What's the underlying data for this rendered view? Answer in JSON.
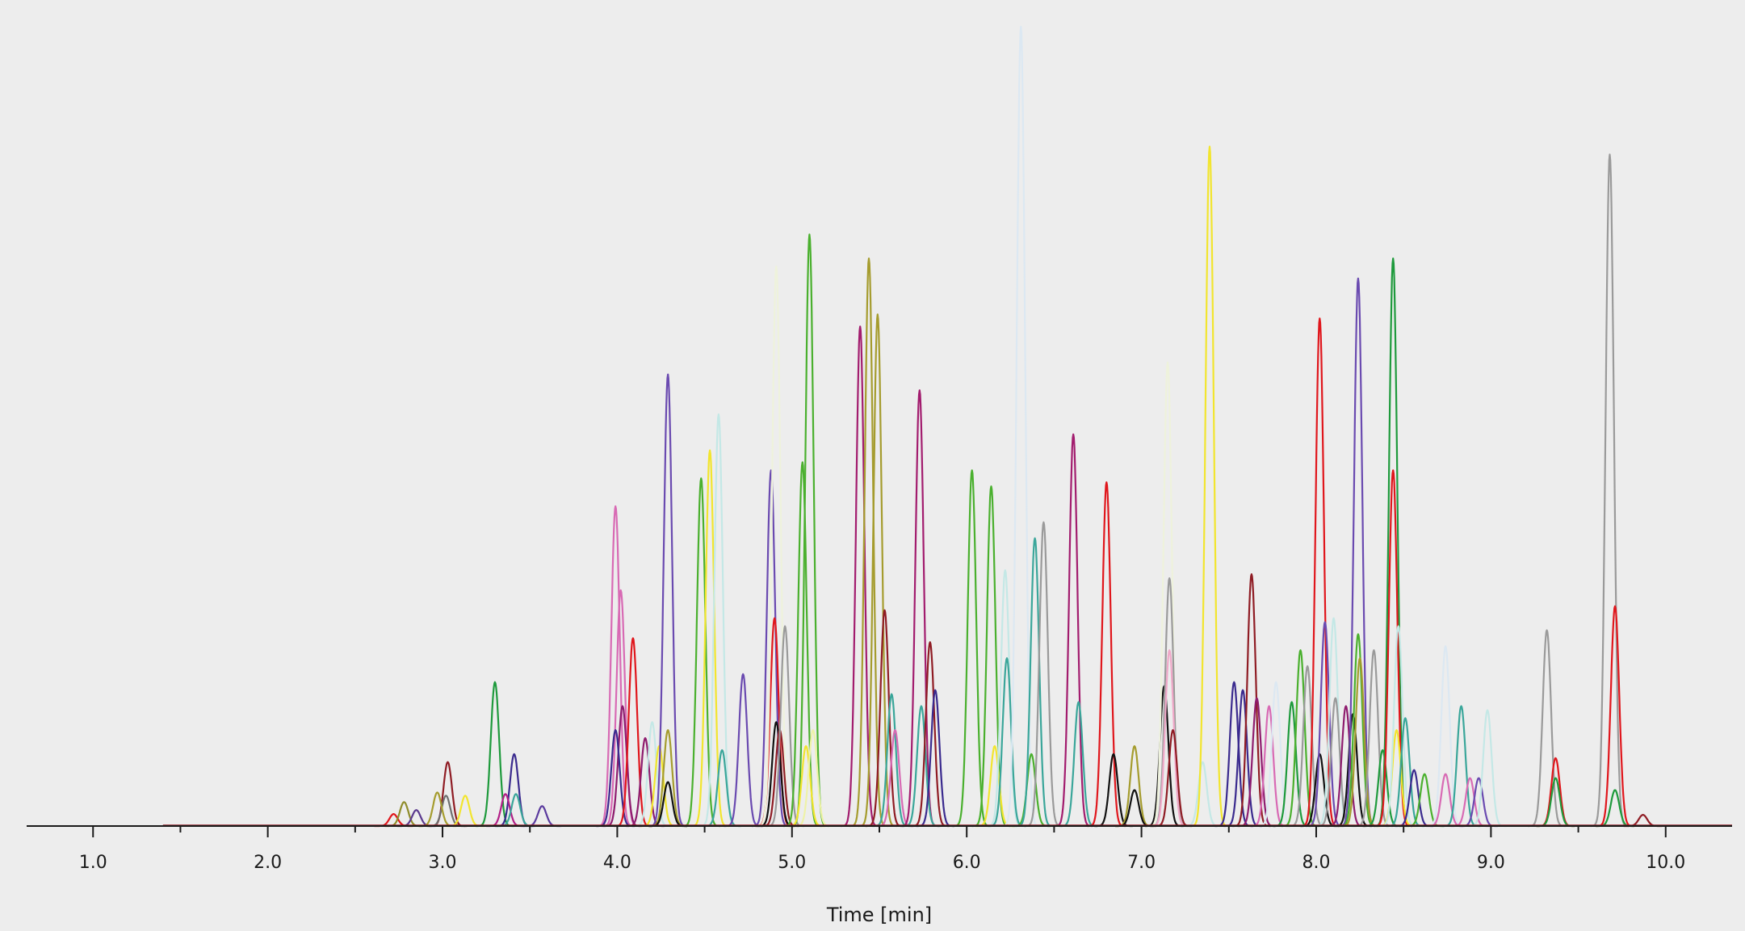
{
  "chart_data": {
    "type": "line",
    "title": "",
    "xlabel": "Time [min]",
    "ylabel": "",
    "xlim": [
      0.62,
      10.38
    ],
    "ylim": [
      0,
      100
    ],
    "grid": false,
    "legend": "none",
    "major_ticks": [
      1.0,
      2.0,
      3.0,
      4.0,
      5.0,
      6.0,
      7.0,
      8.0,
      9.0,
      10.0
    ],
    "tick_labels": [
      "1.0",
      "2.0",
      "3.0",
      "4.0",
      "5.0",
      "6.0",
      "7.0",
      "8.0",
      "9.0",
      "10.0"
    ],
    "minor_ticks": [
      1.5,
      2.5,
      3.5,
      4.5,
      5.5,
      6.5,
      7.5,
      8.5,
      9.5
    ],
    "baseline_start": 1.4,
    "peaks": [
      {
        "t": 2.72,
        "h": 1.5,
        "color": "#e0161c"
      },
      {
        "t": 2.78,
        "h": 3.0,
        "color": "#8f8c2a"
      },
      {
        "t": 2.85,
        "h": 2.0,
        "color": "#5b3a8e"
      },
      {
        "t": 3.03,
        "h": 8.0,
        "color": "#8f1c24"
      },
      {
        "t": 3.02,
        "h": 3.8,
        "color": "#6e6e6e"
      },
      {
        "t": 2.97,
        "h": 4.2,
        "color": "#a59c2e"
      },
      {
        "t": 3.13,
        "h": 3.8,
        "color": "#f2e52e"
      },
      {
        "t": 3.3,
        "h": 18.0,
        "color": "#1e9a3c"
      },
      {
        "t": 3.41,
        "h": 9.0,
        "color": "#3a2a8e"
      },
      {
        "t": 3.36,
        "h": 4.0,
        "color": "#b21e86"
      },
      {
        "t": 3.42,
        "h": 4.0,
        "color": "#3aa69a"
      },
      {
        "t": 3.57,
        "h": 2.5,
        "color": "#5a3a9e"
      },
      {
        "t": 3.99,
        "h": 40.0,
        "color": "#d86ab4"
      },
      {
        "t": 4.02,
        "h": 29.5,
        "color": "#d86ab4"
      },
      {
        "t": 4.03,
        "h": 15.0,
        "color": "#8e1c6e"
      },
      {
        "t": 3.99,
        "h": 12.0,
        "color": "#3a2a8e"
      },
      {
        "t": 4.09,
        "h": 23.5,
        "color": "#e0161c"
      },
      {
        "t": 4.16,
        "h": 11.0,
        "color": "#8e1c6e"
      },
      {
        "t": 4.2,
        "h": 13.0,
        "color": "#c4e8e6"
      },
      {
        "t": 4.24,
        "h": 10.0,
        "color": "#f2e52e"
      },
      {
        "t": 4.29,
        "h": 56.5,
        "color": "#6a4ab0"
      },
      {
        "t": 4.29,
        "h": 12.0,
        "color": "#a59c2e"
      },
      {
        "t": 4.29,
        "h": 5.5,
        "color": "#111111"
      },
      {
        "t": 4.48,
        "h": 43.5,
        "color": "#4ab02e"
      },
      {
        "t": 4.53,
        "h": 47.0,
        "color": "#f2e52e"
      },
      {
        "t": 4.58,
        "h": 51.5,
        "color": "#c4e8e6"
      },
      {
        "t": 4.6,
        "h": 9.5,
        "color": "#3aa69a"
      },
      {
        "t": 4.72,
        "h": 19.0,
        "color": "#6a4ab0"
      },
      {
        "t": 4.88,
        "h": 44.5,
        "color": "#6a4ab0"
      },
      {
        "t": 4.9,
        "h": 26.0,
        "color": "#e0161c"
      },
      {
        "t": 4.91,
        "h": 70.0,
        "color": "#eef2dc"
      },
      {
        "t": 4.91,
        "h": 13.0,
        "color": "#111111"
      },
      {
        "t": 4.93,
        "h": 12.0,
        "color": "#8f1c24"
      },
      {
        "t": 4.96,
        "h": 25.0,
        "color": "#9a9a9a"
      },
      {
        "t": 5.06,
        "h": 45.5,
        "color": "#4ab02e"
      },
      {
        "t": 5.1,
        "h": 74.0,
        "color": "#4ab02e"
      },
      {
        "t": 5.08,
        "h": 10.0,
        "color": "#f2e52e"
      },
      {
        "t": 5.12,
        "h": 12.0,
        "color": "#eef2a8"
      },
      {
        "t": 5.39,
        "h": 62.5,
        "color": "#a21c6e"
      },
      {
        "t": 5.44,
        "h": 71.0,
        "color": "#a59c2e"
      },
      {
        "t": 5.49,
        "h": 64.0,
        "color": "#a59c2e"
      },
      {
        "t": 5.53,
        "h": 27.0,
        "color": "#8f1c24"
      },
      {
        "t": 5.57,
        "h": 16.5,
        "color": "#3aa69a"
      },
      {
        "t": 5.59,
        "h": 12.0,
        "color": "#d86ab4"
      },
      {
        "t": 5.73,
        "h": 54.5,
        "color": "#a21c6e"
      },
      {
        "t": 5.74,
        "h": 15.0,
        "color": "#3aa69a"
      },
      {
        "t": 5.79,
        "h": 23.0,
        "color": "#8f1c24"
      },
      {
        "t": 5.82,
        "h": 17.0,
        "color": "#3a2a8e"
      },
      {
        "t": 6.03,
        "h": 44.5,
        "color": "#4ab02e"
      },
      {
        "t": 6.14,
        "h": 42.5,
        "color": "#4ab02e"
      },
      {
        "t": 6.16,
        "h": 10.0,
        "color": "#f2e52e"
      },
      {
        "t": 6.22,
        "h": 32.0,
        "color": "#c4e8e6"
      },
      {
        "t": 6.23,
        "h": 21.0,
        "color": "#3aa69a"
      },
      {
        "t": 6.31,
        "h": 100.0,
        "color": "#dce8f2"
      },
      {
        "t": 6.37,
        "h": 9.0,
        "color": "#4ab02e"
      },
      {
        "t": 6.39,
        "h": 36.0,
        "color": "#3aa69a"
      },
      {
        "t": 6.44,
        "h": 38.0,
        "color": "#9a9a9a"
      },
      {
        "t": 6.61,
        "h": 49.0,
        "color": "#a21c6e"
      },
      {
        "t": 6.64,
        "h": 15.5,
        "color": "#3aa69a"
      },
      {
        "t": 6.8,
        "h": 43.0,
        "color": "#e0161c"
      },
      {
        "t": 6.84,
        "h": 9.0,
        "color": "#111111"
      },
      {
        "t": 6.96,
        "h": 10.0,
        "color": "#a59c2e"
      },
      {
        "t": 6.96,
        "h": 4.5,
        "color": "#111111"
      },
      {
        "t": 7.13,
        "h": 17.5,
        "color": "#111111"
      },
      {
        "t": 7.15,
        "h": 58.0,
        "color": "#eef2dc"
      },
      {
        "t": 7.16,
        "h": 31.0,
        "color": "#9a9a9a"
      },
      {
        "t": 7.16,
        "h": 22.0,
        "color": "#f0a8c8"
      },
      {
        "t": 7.18,
        "h": 12.0,
        "color": "#8f1c24"
      },
      {
        "t": 7.35,
        "h": 8.0,
        "color": "#c4e8e6"
      },
      {
        "t": 7.39,
        "h": 85.0,
        "color": "#f2e52e"
      },
      {
        "t": 7.53,
        "h": 18.0,
        "color": "#3a2a8e"
      },
      {
        "t": 7.58,
        "h": 17.0,
        "color": "#3a2a8e"
      },
      {
        "t": 7.63,
        "h": 31.5,
        "color": "#8f1c24"
      },
      {
        "t": 7.66,
        "h": 16.0,
        "color": "#8e1c6e"
      },
      {
        "t": 7.73,
        "h": 15.0,
        "color": "#d86ab4"
      },
      {
        "t": 7.77,
        "h": 18.0,
        "color": "#dce8f2"
      },
      {
        "t": 7.86,
        "h": 15.5,
        "color": "#1e9a3c"
      },
      {
        "t": 7.91,
        "h": 22.0,
        "color": "#4ab02e"
      },
      {
        "t": 7.95,
        "h": 20.0,
        "color": "#9a9a9a"
      },
      {
        "t": 8.02,
        "h": 63.5,
        "color": "#e0161c"
      },
      {
        "t": 8.02,
        "h": 9.0,
        "color": "#111111"
      },
      {
        "t": 8.05,
        "h": 25.5,
        "color": "#6a4ab0"
      },
      {
        "t": 8.1,
        "h": 26.0,
        "color": "#c4e8e6"
      },
      {
        "t": 8.11,
        "h": 16.0,
        "color": "#9a9a9a"
      },
      {
        "t": 8.17,
        "h": 15.0,
        "color": "#8e1c6e"
      },
      {
        "t": 8.21,
        "h": 14.0,
        "color": "#111111"
      },
      {
        "t": 8.24,
        "h": 68.5,
        "color": "#6a4ab0"
      },
      {
        "t": 8.24,
        "h": 24.0,
        "color": "#4ab02e"
      },
      {
        "t": 8.25,
        "h": 21.0,
        "color": "#a59c2e"
      },
      {
        "t": 8.33,
        "h": 22.0,
        "color": "#9a9a9a"
      },
      {
        "t": 8.38,
        "h": 9.5,
        "color": "#1e9a3c"
      },
      {
        "t": 8.44,
        "h": 71.0,
        "color": "#1e9a3c"
      },
      {
        "t": 8.44,
        "h": 44.5,
        "color": "#e0161c"
      },
      {
        "t": 8.46,
        "h": 12.0,
        "color": "#f2e52e"
      },
      {
        "t": 8.47,
        "h": 25.0,
        "color": "#c4e8e6"
      },
      {
        "t": 8.51,
        "h": 13.5,
        "color": "#3aa69a"
      },
      {
        "t": 8.56,
        "h": 7.0,
        "color": "#3a2a8e"
      },
      {
        "t": 8.62,
        "h": 6.5,
        "color": "#4ab02e"
      },
      {
        "t": 8.74,
        "h": 22.5,
        "color": "#dce8f2"
      },
      {
        "t": 8.74,
        "h": 6.5,
        "color": "#d86ab4"
      },
      {
        "t": 8.83,
        "h": 15.0,
        "color": "#3aa69a"
      },
      {
        "t": 8.88,
        "h": 6.0,
        "color": "#d86ab4"
      },
      {
        "t": 8.93,
        "h": 6.0,
        "color": "#6a4ab0"
      },
      {
        "t": 8.98,
        "h": 14.5,
        "color": "#c4e8e6"
      },
      {
        "t": 9.32,
        "h": 24.5,
        "color": "#9a9a9a"
      },
      {
        "t": 9.37,
        "h": 8.5,
        "color": "#e0161c"
      },
      {
        "t": 9.37,
        "h": 6.0,
        "color": "#1e9a3c"
      },
      {
        "t": 9.68,
        "h": 84.0,
        "color": "#9a9a9a"
      },
      {
        "t": 9.71,
        "h": 27.5,
        "color": "#e0161c"
      },
      {
        "t": 9.71,
        "h": 4.5,
        "color": "#1e9a3c"
      },
      {
        "t": 9.87,
        "h": 1.4,
        "color": "#8f1c24"
      }
    ]
  }
}
